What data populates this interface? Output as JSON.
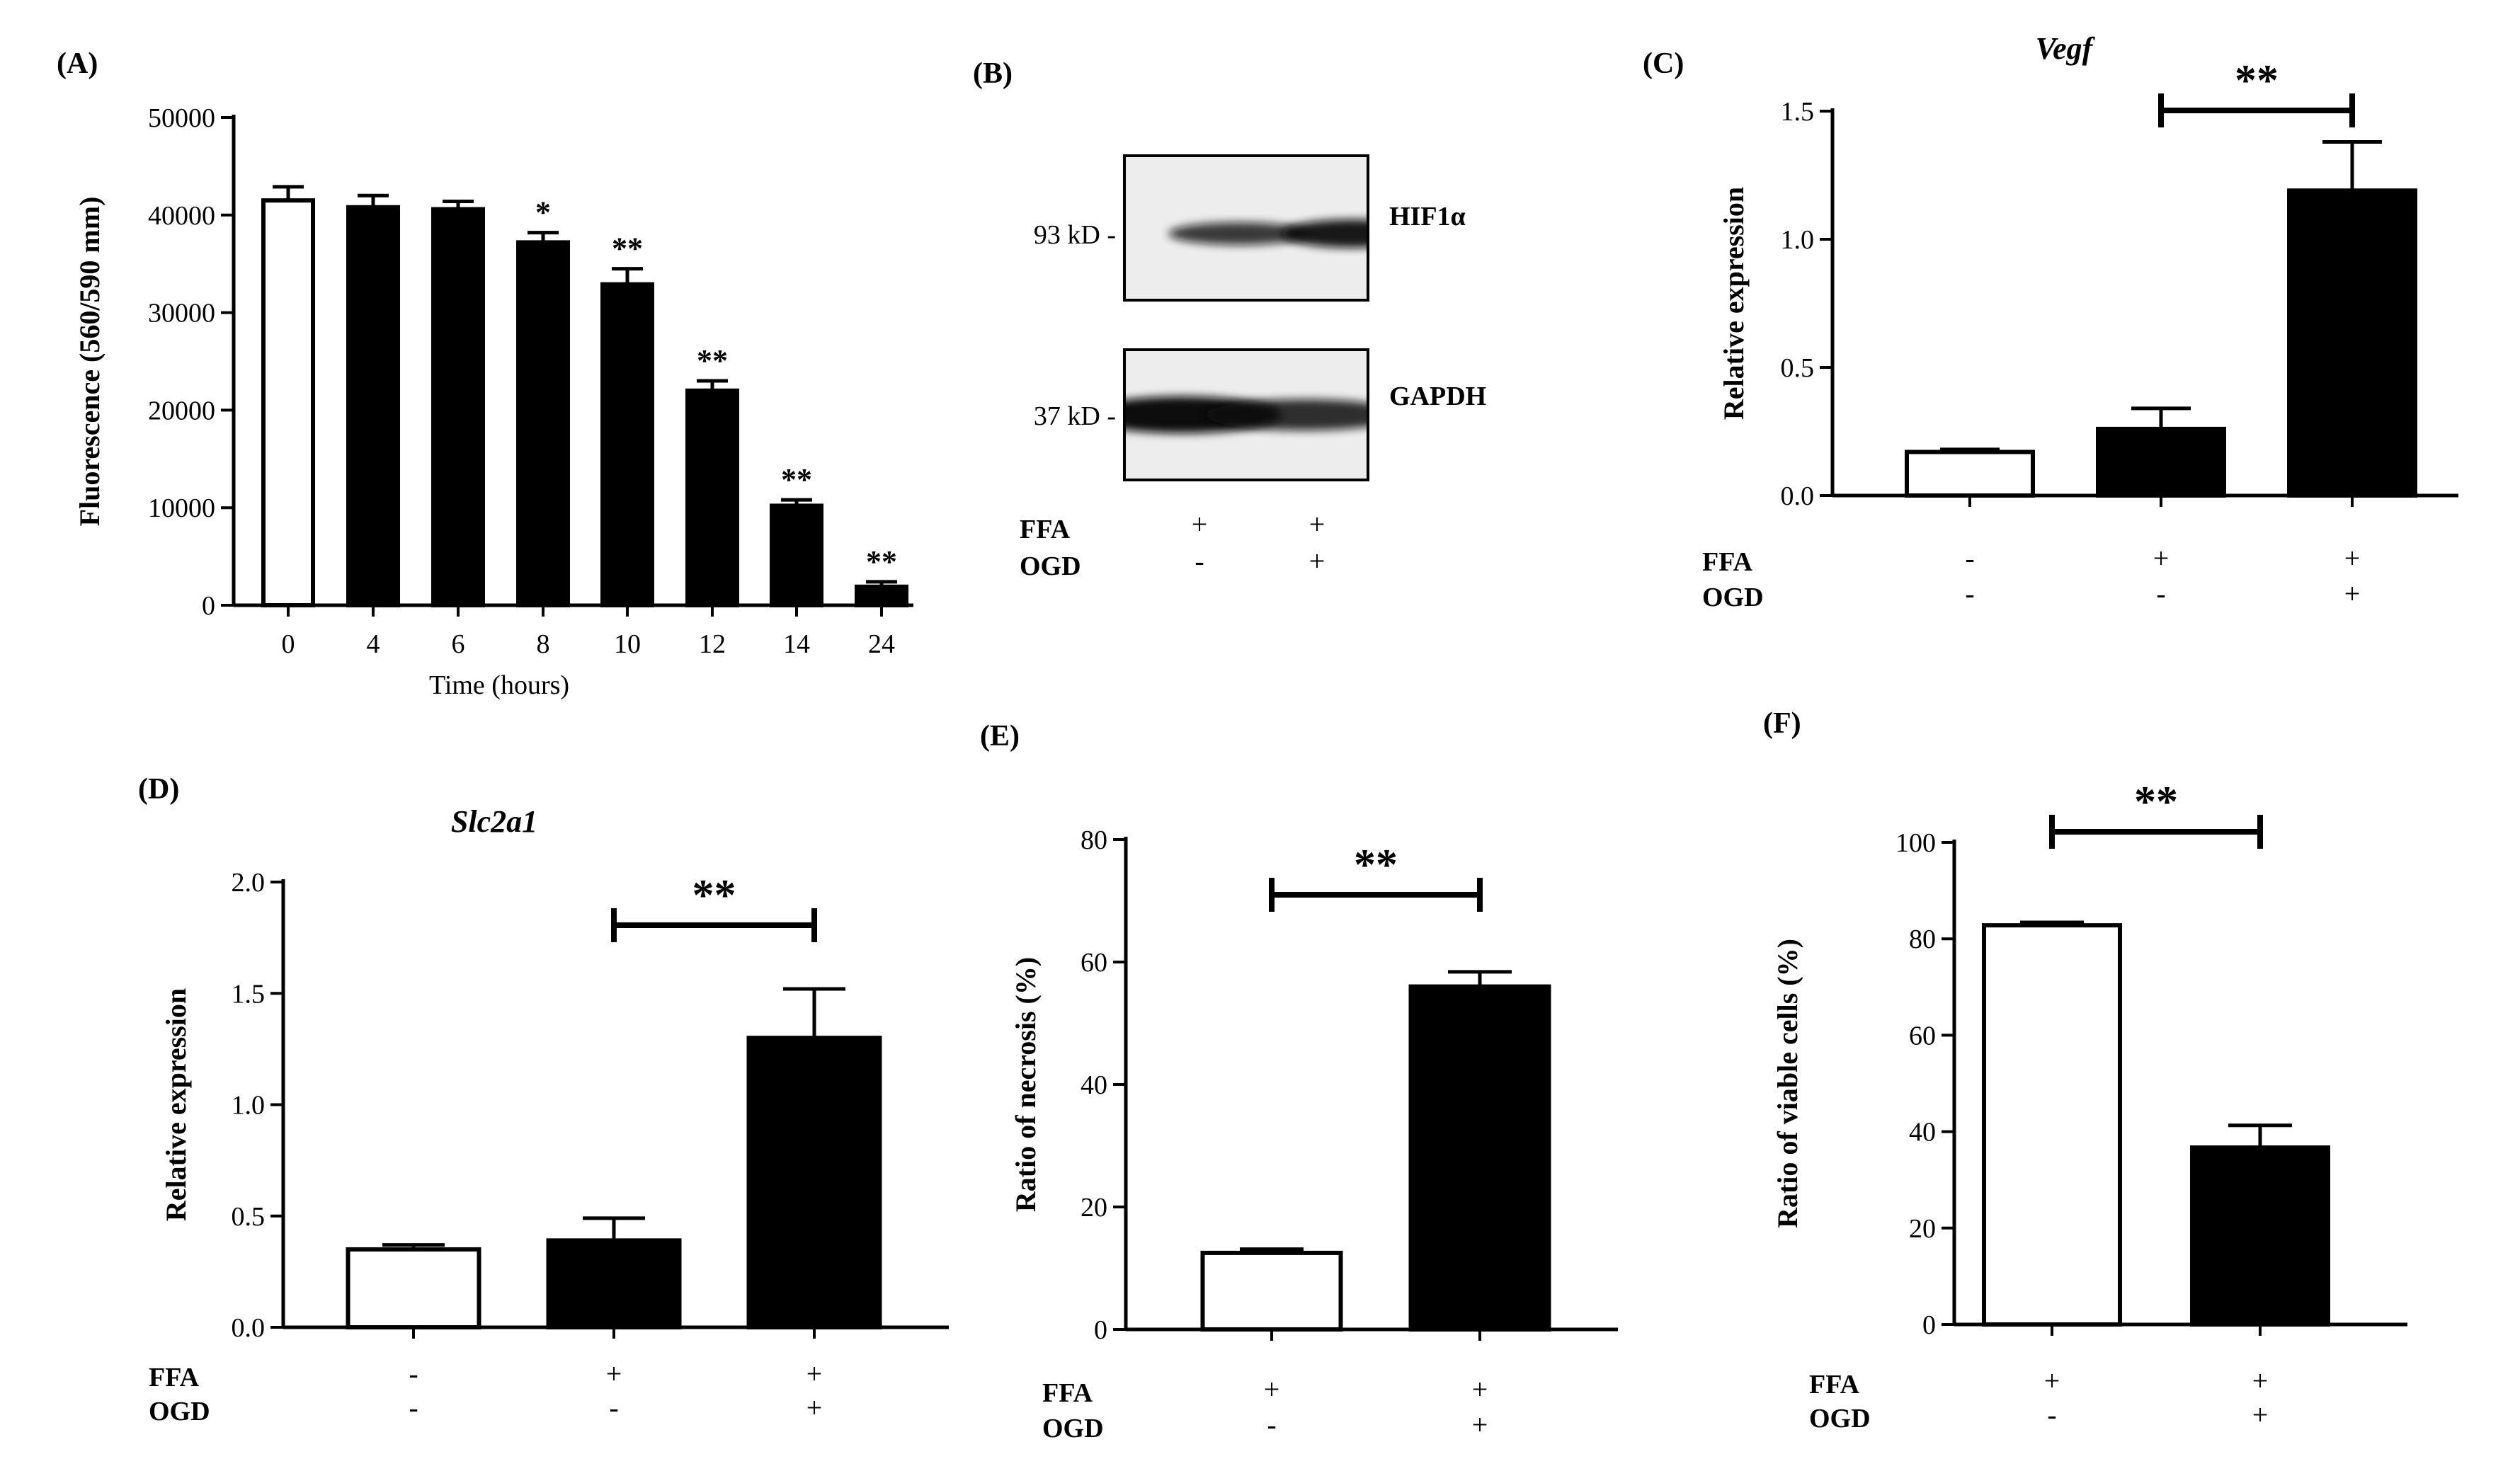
{
  "figure": {
    "panelA": {
      "label": "(A)",
      "chart_data": {
        "type": "bar",
        "categories": [
          "0",
          "4",
          "6",
          "8",
          "10",
          "12",
          "14",
          "24"
        ],
        "values": [
          41500,
          40800,
          40600,
          37200,
          32900,
          22000,
          10200,
          1900
        ],
        "errors": [
          1400,
          1200,
          800,
          1000,
          1600,
          1000,
          600,
          500
        ],
        "significance": [
          "",
          "",
          "",
          "*",
          "**",
          "**",
          "**",
          "**"
        ],
        "fills": [
          "#ffffff",
          "#000000",
          "#000000",
          "#000000",
          "#000000",
          "#000000",
          "#000000",
          "#000000"
        ],
        "ylabel": "Fluorescence (560/590 mm)",
        "xlabel": "Time (hours)",
        "ylim": [
          0,
          50000
        ],
        "yticks": [
          0,
          10000,
          20000,
          30000,
          40000,
          50000
        ]
      }
    },
    "panelB": {
      "label": "(B)",
      "bands": [
        {
          "marker": "93 kD -",
          "protein": "HIF1α"
        },
        {
          "marker": "37 kD -",
          "protein": "GAPDH"
        }
      ],
      "conditions": {
        "row_labels": [
          "FFA",
          "OGD"
        ],
        "values": [
          [
            "+",
            "+"
          ],
          [
            "-",
            "+"
          ]
        ]
      }
    },
    "panelC": {
      "label": "(C)",
      "chart_data": {
        "type": "bar",
        "title": "Vegf",
        "values": [
          0.17,
          0.26,
          1.19
        ],
        "errors": [
          0.01,
          0.08,
          0.19
        ],
        "fills": [
          "#ffffff",
          "#000000",
          "#000000"
        ],
        "ylabel": "Relative expression",
        "ylim": [
          0,
          1.5
        ],
        "yticks": [
          "0.0",
          "0.5",
          "1.0",
          "1.5"
        ],
        "significance": {
          "from": 1,
          "to": 2,
          "text": "**"
        },
        "condition_labels": [
          "FFA",
          "OGD"
        ],
        "conditions": [
          [
            "-",
            "+",
            "+"
          ],
          [
            "-",
            "-",
            "+"
          ]
        ]
      }
    },
    "panelD": {
      "label": "(D)",
      "chart_data": {
        "type": "bar",
        "title": "Slc2a1",
        "values": [
          0.35,
          0.39,
          1.3
        ],
        "errors": [
          0.02,
          0.1,
          0.22
        ],
        "fills": [
          "#ffffff",
          "#000000",
          "#000000"
        ],
        "ylabel": "Relative expression",
        "ylim": [
          0,
          2.0
        ],
        "yticks": [
          "0.0",
          "0.5",
          "1.0",
          "1.5",
          "2.0"
        ],
        "significance": {
          "from": 1,
          "to": 2,
          "text": "**"
        },
        "condition_labels": [
          "FFA",
          "OGD"
        ],
        "conditions": [
          [
            "-",
            "+",
            "+"
          ],
          [
            "-",
            "-",
            "+"
          ]
        ]
      }
    },
    "panelE": {
      "label": "(E)",
      "chart_data": {
        "type": "bar",
        "values": [
          12.5,
          56.0
        ],
        "errors": [
          0.6,
          2.4
        ],
        "fills": [
          "#ffffff",
          "#000000"
        ],
        "ylabel": "Ratio of necrosis (%)",
        "ylim": [
          0,
          80
        ],
        "yticks": [
          "0",
          "20",
          "40",
          "60",
          "80"
        ],
        "significance": {
          "from": 0,
          "to": 1,
          "text": "**"
        },
        "condition_labels": [
          "FFA",
          "OGD"
        ],
        "conditions": [
          [
            "+",
            "+"
          ],
          [
            "-",
            "+"
          ]
        ]
      }
    },
    "panelF": {
      "label": "(F)",
      "chart_data": {
        "type": "bar",
        "values": [
          82.8,
          36.7
        ],
        "errors": [
          0.6,
          4.6
        ],
        "fills": [
          "#ffffff",
          "#000000"
        ],
        "ylabel": "Ratio of viable cells (%)",
        "ylim": [
          0,
          100
        ],
        "yticks": [
          "0",
          "20",
          "40",
          "60",
          "80",
          "100"
        ],
        "significance": {
          "from": 0,
          "to": 1,
          "text": "**"
        },
        "condition_labels": [
          "FFA",
          "OGD"
        ],
        "conditions": [
          [
            "+",
            "+"
          ],
          [
            "-",
            "+"
          ]
        ]
      }
    }
  }
}
